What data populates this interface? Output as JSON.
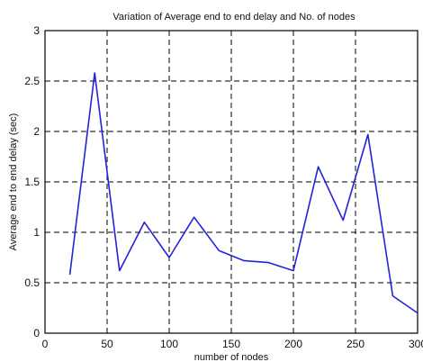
{
  "chart_data": {
    "type": "line",
    "title": "Variation of Average end to end delay and No. of nodes",
    "xlabel": "number of nodes",
    "ylabel": "Average end to end delay (sec)",
    "xlim": [
      0,
      300
    ],
    "ylim": [
      0,
      3
    ],
    "xticks": [
      0,
      50,
      100,
      150,
      200,
      250,
      300
    ],
    "yticks": [
      0,
      0.5,
      1,
      1.5,
      2,
      2.5,
      3
    ],
    "xtick_labels": [
      "0",
      "50",
      "100",
      "150",
      "200",
      "250",
      "300"
    ],
    "ytick_labels": [
      "0",
      "0.5",
      "1",
      "1.5",
      "2",
      "2.5",
      "3"
    ],
    "grid": true,
    "series": [
      {
        "color": "#2222dd",
        "x": [
          20,
          40,
          60,
          80,
          100,
          120,
          140,
          160,
          180,
          200,
          220,
          240,
          260,
          280,
          300
        ],
        "y": [
          0.58,
          2.58,
          0.62,
          1.1,
          0.75,
          1.15,
          0.82,
          0.72,
          0.7,
          0.62,
          1.65,
          1.12,
          1.97,
          0.37,
          0.2
        ]
      }
    ]
  }
}
